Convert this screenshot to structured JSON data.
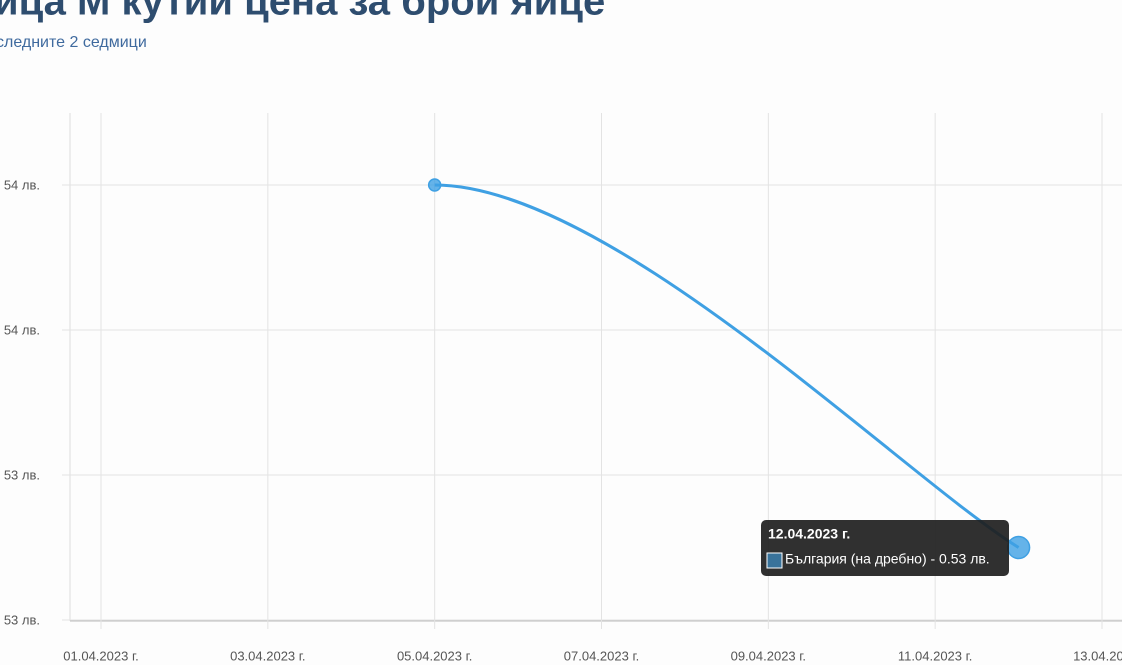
{
  "chart_data": {
    "type": "line",
    "title": "ица М кутии цена за брой яйце",
    "subtitle": "следните 2 седмици",
    "x": [
      "2023-04-05",
      "2023-04-12"
    ],
    "series": [
      {
        "color": "#3fa0e3",
        "values": [
          0.54,
          0.53
        ]
      }
    ],
    "xlim": [
      "2023-04-01",
      "2023-04-13"
    ],
    "xticks": [
      {
        "value": "2023-04-01",
        "label": "01.04.2023 г."
      },
      {
        "value": "2023-04-03",
        "label": "03.04.2023 г."
      },
      {
        "value": "2023-04-05",
        "label": "05.04.2023 г."
      },
      {
        "value": "2023-04-07",
        "label": "07.04.2023 г."
      },
      {
        "value": "2023-04-09",
        "label": "09.04.2023 г."
      },
      {
        "value": "2023-04-11",
        "label": "11.04.2023 г."
      },
      {
        "value": "2023-04-13",
        "label": "13.04.202"
      }
    ],
    "ylim": [
      0.528,
      0.542
    ],
    "yticks": [
      {
        "value": 0.54,
        "label": "54 лв."
      },
      {
        "value": 0.536,
        "label": "54 лв."
      },
      {
        "value": 0.532,
        "label": "53 лв."
      },
      {
        "value": 0.528,
        "label": "53 лв."
      }
    ],
    "grid": true,
    "tooltip": {
      "title": "12.04.2023 г.",
      "text": "България (на дребно) - 0.53 лв."
    }
  }
}
